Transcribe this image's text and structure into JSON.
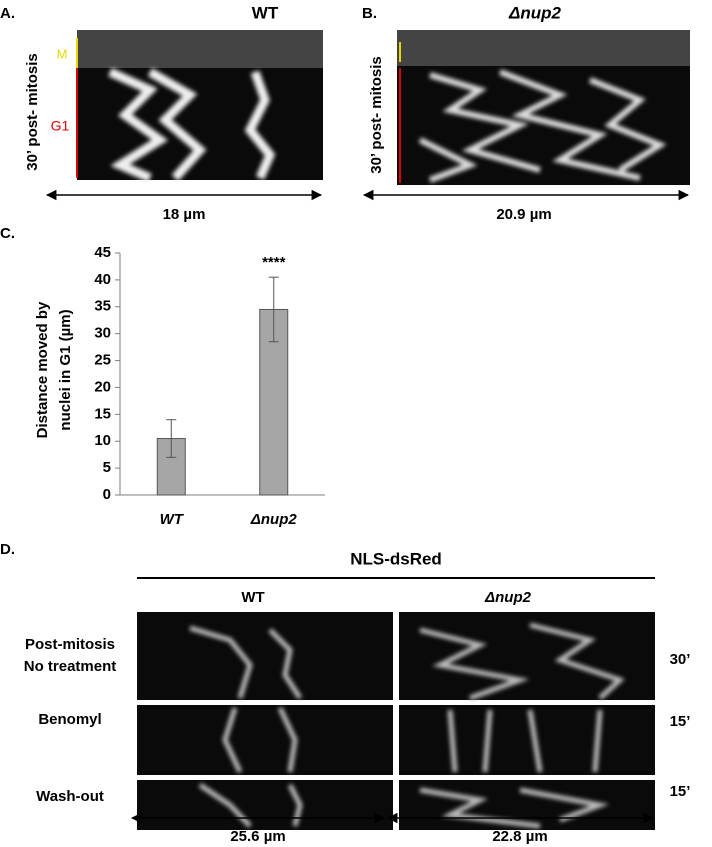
{
  "panel_a": {
    "label": "A.",
    "title": "WT",
    "y_label": "30’ post- mitosis",
    "phase_m": "M",
    "phase_g1": "G1",
    "scale": "18 µm"
  },
  "panel_b": {
    "label": "B.",
    "title": "Δnup2",
    "y_label": "30’ post- mitosis",
    "scale": "20.9 µm"
  },
  "chart_data": {
    "type": "bar",
    "panel_label": "C.",
    "y_label": [
      "Distance moved by",
      "nuclei in G1 (µm)"
    ],
    "categories": [
      "WT",
      "Δnup2"
    ],
    "values": [
      10.5,
      34.5
    ],
    "errors": [
      3.5,
      6
    ],
    "color": "#a6a6a6",
    "significance": "****",
    "ylim": [
      0,
      45
    ],
    "yticks": [
      0,
      5,
      10,
      15,
      20,
      25,
      30,
      35,
      40,
      45
    ]
  },
  "panel_d": {
    "label": "D.",
    "title": "NLS-dsRed",
    "columns": [
      "WT",
      "Δnup2"
    ],
    "rows": [
      {
        "label": [
          "Post-mitosis",
          "No treatment"
        ],
        "time": "30’"
      },
      {
        "label": [
          "Benomyl"
        ],
        "time": "15’"
      },
      {
        "label": [
          "Wash-out"
        ],
        "time": "15’"
      }
    ],
    "scales": [
      "25.6 µm",
      "22.8 µm"
    ]
  }
}
